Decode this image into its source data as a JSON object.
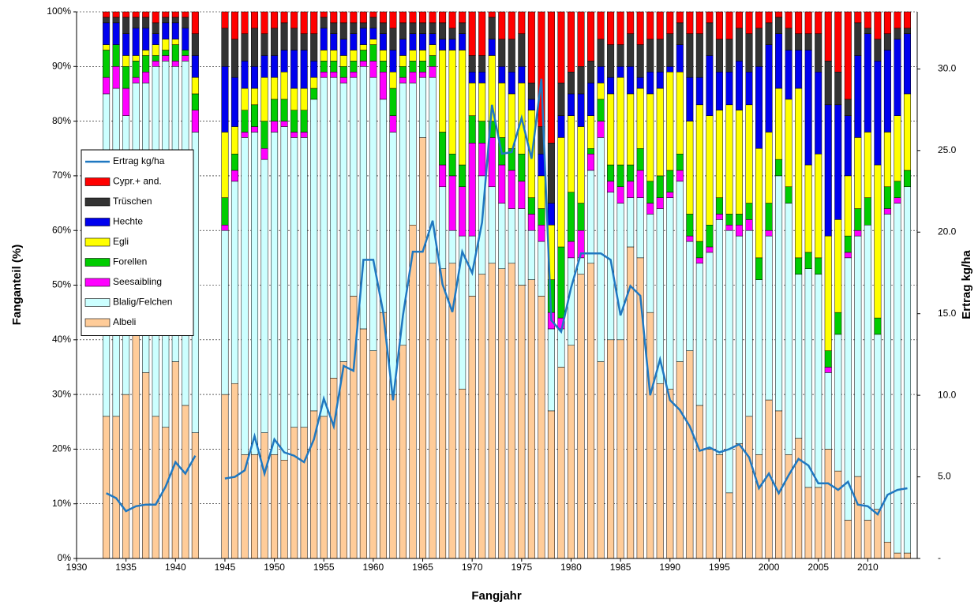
{
  "chart_data": {
    "type": "bar",
    "stacked": true,
    "x_label": "Fangjahr",
    "y_label": "Fanganteil  (%)",
    "y2_label": "Ertrag kg/ha",
    "x": [
      1933,
      1934,
      1935,
      1936,
      1937,
      1938,
      1939,
      1940,
      1941,
      1942,
      1943,
      1944,
      1945,
      1946,
      1947,
      1948,
      1949,
      1950,
      1951,
      1952,
      1953,
      1954,
      1955,
      1956,
      1957,
      1958,
      1959,
      1960,
      1961,
      1962,
      1963,
      1964,
      1965,
      1966,
      1967,
      1968,
      1969,
      1970,
      1971,
      1972,
      1973,
      1974,
      1975,
      1976,
      1977,
      1978,
      1979,
      1980,
      1981,
      1982,
      1983,
      1984,
      1985,
      1986,
      1987,
      1988,
      1989,
      1990,
      1991,
      1992,
      1993,
      1994,
      1995,
      1996,
      1997,
      1998,
      1999,
      2000,
      2001,
      2002,
      2003,
      2004,
      2005,
      2006,
      2007,
      2008,
      2009,
      2010,
      2011,
      2012,
      2013,
      2014
    ],
    "xlim": [
      1930,
      2015
    ],
    "xticks": [
      1930,
      1935,
      1940,
      1945,
      1950,
      1955,
      1960,
      1965,
      1970,
      1975,
      1980,
      1985,
      1990,
      1995,
      2000,
      2005,
      2010
    ],
    "ylim": [
      0,
      100
    ],
    "yticks": [
      {
        "value": 0,
        "label": "0%"
      },
      {
        "value": 10,
        "label": "10%"
      },
      {
        "value": 20,
        "label": "20%"
      },
      {
        "value": 30,
        "label": "30%"
      },
      {
        "value": 40,
        "label": "40%"
      },
      {
        "value": 50,
        "label": "50%"
      },
      {
        "value": 60,
        "label": "60%"
      },
      {
        "value": 70,
        "label": "70%"
      },
      {
        "value": 80,
        "label": "80%"
      },
      {
        "value": 90,
        "label": "90%"
      },
      {
        "value": 100,
        "label": "100%"
      }
    ],
    "y2lim": [
      0,
      33.5
    ],
    "y2ticks": [
      {
        "value": 0,
        "label": "-"
      },
      {
        "value": 5,
        "label": "5.0"
      },
      {
        "value": 10,
        "label": "10.0"
      },
      {
        "value": 15,
        "label": "15.0"
      },
      {
        "value": 20,
        "label": "20.0"
      },
      {
        "value": 25,
        "label": "25.0"
      },
      {
        "value": 30,
        "label": "30.0"
      }
    ],
    "grid": true,
    "legend": "upper left",
    "series": [
      {
        "name": "Albeli",
        "color": "#ffcc99",
        "values": [
          26,
          26,
          30,
          41,
          34,
          26,
          24,
          36,
          28,
          23,
          null,
          null,
          30,
          32,
          19,
          19,
          23,
          19,
          18,
          24,
          24,
          27,
          26,
          33,
          36,
          48,
          42,
          38,
          45,
          30,
          39,
          61,
          77,
          54,
          53,
          54,
          31,
          48,
          52,
          54,
          53,
          54,
          50,
          51,
          48,
          27,
          35,
          39,
          52,
          54,
          36,
          40,
          40,
          57,
          55,
          45,
          32,
          31,
          36,
          38,
          28,
          20,
          19,
          12,
          21,
          26,
          19,
          29,
          27,
          19,
          22,
          13,
          13,
          20,
          16,
          7,
          15,
          7,
          9,
          3,
          1,
          1
        ]
      },
      {
        "name": "Blalig/Felchen",
        "color": "#ccffff",
        "values": [
          59,
          60,
          51,
          46,
          53,
          64,
          67,
          54,
          63,
          55,
          null,
          null,
          30,
          37,
          58,
          59,
          50,
          59,
          61,
          53,
          53,
          57,
          62,
          55,
          51,
          40,
          48,
          50,
          39,
          48,
          48,
          26,
          11,
          34,
          15,
          6,
          28,
          11,
          18,
          14,
          12,
          10,
          14,
          9,
          10,
          15,
          7,
          16,
          3,
          17,
          41,
          27,
          25,
          9,
          11,
          18,
          32,
          35,
          33,
          20,
          26,
          36,
          43,
          48,
          38,
          34,
          32,
          30,
          43,
          46,
          30,
          40,
          39,
          14,
          25,
          48,
          44,
          54,
          32,
          60,
          64,
          67
        ]
      },
      {
        "name": "Seesaibling",
        "color": "#ff00ff",
        "values": [
          3,
          4,
          5,
          1,
          2,
          1,
          1,
          1,
          1,
          4,
          null,
          null,
          1,
          2,
          1,
          1,
          2,
          2,
          1,
          1,
          1,
          0,
          1,
          1,
          1,
          1,
          1,
          3,
          5,
          3,
          1,
          2,
          1,
          2,
          4,
          10,
          9,
          17,
          6,
          9,
          7,
          7,
          5,
          3,
          3,
          3,
          2,
          3,
          5,
          3,
          3,
          2,
          3,
          3,
          5,
          2,
          2,
          1,
          2,
          1,
          1,
          1,
          1,
          1,
          2,
          2,
          0,
          1,
          0,
          0,
          0,
          0,
          0,
          1,
          0,
          1,
          1,
          0,
          0,
          1,
          1,
          0
        ]
      },
      {
        "name": "Forellen",
        "color": "#00cc00",
        "values": [
          5,
          4,
          4,
          3,
          3,
          1,
          1,
          3,
          1,
          3,
          null,
          null,
          5,
          3,
          4,
          4,
          5,
          4,
          4,
          4,
          4,
          2,
          2,
          2,
          2,
          2,
          2,
          3,
          2,
          5,
          2,
          2,
          2,
          2,
          6,
          4,
          4,
          5,
          4,
          3,
          5,
          4,
          5,
          3,
          3,
          6,
          13,
          9,
          5,
          1,
          4,
          3,
          4,
          3,
          4,
          4,
          4,
          4,
          3,
          4,
          3,
          4,
          3,
          2,
          2,
          3,
          4,
          5,
          3,
          3,
          3,
          3,
          3,
          3,
          4,
          3,
          4,
          5,
          3,
          4,
          3,
          3
        ]
      },
      {
        "name": "Egli",
        "color": "#ffff00",
        "values": [
          1,
          0,
          2,
          1,
          1,
          2,
          2,
          1,
          0,
          3,
          null,
          null,
          12,
          5,
          4,
          3,
          8,
          4,
          5,
          4,
          4,
          2,
          2,
          2,
          2,
          2,
          1,
          1,
          2,
          3,
          2,
          2,
          2,
          2,
          15,
          19,
          21,
          6,
          7,
          12,
          10,
          10,
          13,
          16,
          6,
          10,
          20,
          14,
          14,
          6,
          3,
          13,
          16,
          13,
          11,
          16,
          16,
          18,
          15,
          17,
          25,
          20,
          16,
          20,
          19,
          18,
          20,
          13,
          13,
          16,
          31,
          16,
          19,
          21,
          17,
          11,
          13,
          12,
          28,
          10,
          12,
          14
        ]
      },
      {
        "name": "Hechte",
        "color": "#0000ee",
        "values": [
          4,
          4,
          4,
          5,
          4,
          2,
          3,
          3,
          4,
          4,
          null,
          null,
          12,
          9,
          5,
          4,
          4,
          4,
          4,
          7,
          7,
          3,
          4,
          3,
          3,
          3,
          3,
          2,
          3,
          4,
          3,
          3,
          3,
          2,
          2,
          2,
          3,
          2,
          2,
          3,
          3,
          4,
          3,
          2,
          4,
          4,
          4,
          4,
          6,
          6,
          3,
          3,
          2,
          5,
          2,
          4,
          3,
          1,
          5,
          8,
          5,
          11,
          7,
          6,
          9,
          6,
          15,
          16,
          10,
          9,
          7,
          21,
          15,
          24,
          21,
          11,
          15,
          18,
          19,
          15,
          14,
          11
        ]
      },
      {
        "name": "Trüschen",
        "color": "#333333",
        "values": [
          1,
          1,
          3,
          2,
          2,
          2,
          1,
          1,
          2,
          4,
          null,
          null,
          7,
          7,
          5,
          7,
          4,
          5,
          5,
          4,
          3,
          5,
          2,
          2,
          3,
          2,
          1,
          2,
          2,
          4,
          3,
          2,
          2,
          2,
          3,
          2,
          2,
          3,
          3,
          4,
          5,
          6,
          6,
          3,
          5,
          11,
          6,
          4,
          5,
          4,
          5,
          6,
          4,
          6,
          6,
          6,
          6,
          6,
          4,
          8,
          8,
          6,
          6,
          6,
          6,
          7,
          7,
          4,
          3,
          4,
          3,
          3,
          7,
          8,
          6,
          3,
          6,
          1,
          4,
          3,
          2,
          1
        ]
      },
      {
        "name": "Cypr.+ and.",
        "color": "#ff0000",
        "values": [
          1,
          1,
          1,
          1,
          1,
          2,
          1,
          1,
          1,
          4,
          null,
          null,
          3,
          5,
          4,
          3,
          4,
          3,
          2,
          3,
          4,
          4,
          1,
          2,
          2,
          2,
          2,
          1,
          2,
          3,
          2,
          2,
          2,
          2,
          2,
          3,
          2,
          8,
          8,
          1,
          5,
          5,
          4,
          13,
          21,
          24,
          13,
          11,
          10,
          9,
          5,
          6,
          6,
          4,
          6,
          5,
          5,
          4,
          2,
          4,
          4,
          2,
          5,
          5,
          3,
          4,
          3,
          2,
          1,
          3,
          4,
          4,
          4,
          9,
          11,
          16,
          2,
          3,
          5,
          4,
          3,
          3
        ]
      },
      {
        "name": "Ertrag kg/ha",
        "type": "line",
        "axis": "y2",
        "color": "#1f78c1",
        "values": [
          4.0,
          3.7,
          2.9,
          3.2,
          3.3,
          3.3,
          4.4,
          5.9,
          5.2,
          6.3,
          null,
          null,
          4.9,
          5.0,
          5.4,
          7.5,
          5.2,
          7.3,
          6.5,
          6.3,
          5.9,
          7.3,
          9.8,
          8.1,
          11.8,
          11.5,
          18.3,
          18.3,
          15.1,
          9.7,
          14.9,
          18.8,
          18.8,
          20.7,
          16.8,
          15.1,
          18.8,
          17.5,
          20.6,
          27.8,
          24.8,
          24.9,
          27.0,
          24.5,
          29.4,
          14.6,
          13.9,
          16.6,
          18.7,
          18.7,
          18.7,
          18.3,
          14.9,
          16.7,
          16.1,
          10.0,
          12.2,
          9.7,
          9.1,
          8.1,
          6.6,
          6.8,
          6.5,
          6.7,
          7.0,
          6.2,
          4.3,
          5.2,
          4.0,
          5.1,
          6.1,
          5.7,
          4.6,
          4.6,
          4.2,
          4.7,
          3.3,
          3.2,
          2.7,
          3.9,
          4.2,
          4.3
        ]
      }
    ]
  }
}
